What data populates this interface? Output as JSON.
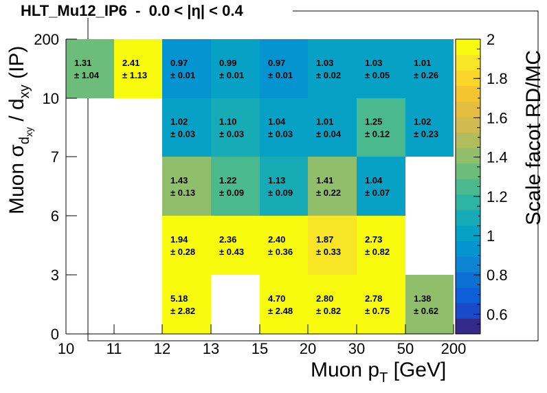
{
  "chart_data": {
    "type": "heatmap",
    "title": "HLT_Mu12_IP6  -  0.0 < |η| < 0.4",
    "xlabel": {
      "main": "Muon p",
      "sub": "T",
      "rest": " [GeV]"
    },
    "ylabel": {
      "a": "Muon σ",
      "b": "d",
      "c": "xy",
      "d": " / d",
      "e": "xy",
      "f": " (IP)"
    },
    "zlabel": "Scale facot RD/MC",
    "x_edges": [
      "10",
      "11",
      "12",
      "13",
      "15",
      "20",
      "30",
      "50",
      "200"
    ],
    "y_edges": [
      "0",
      "3",
      "6",
      "7",
      "10",
      "200"
    ],
    "z_range": [
      0.5,
      2.0
    ],
    "z_ticks": [
      "0.6",
      "0.8",
      "1",
      "1.2",
      "1.4",
      "1.6",
      "1.8",
      "2"
    ],
    "palette": [
      "#352a87",
      "#1a49c9",
      "#0d5fd8",
      "#0b72d4",
      "#0d84d2",
      "#0495d0",
      "#06a1c5",
      "#17abb5",
      "#2db4a2",
      "#4ab98e",
      "#6cbd7a",
      "#90be6a",
      "#b1bc5c",
      "#cfbb4f",
      "#e5bd3f",
      "#f5c52f",
      "#fad52a",
      "#f7e526",
      "#f9fb0e"
    ],
    "cells": [
      {
        "x": 0,
        "y": 4,
        "value": 1.31,
        "label": "1.31",
        "err": "± 1.04"
      },
      {
        "x": 1,
        "y": 4,
        "value": 2.41,
        "label": "2.41",
        "err": "± 1.13"
      },
      {
        "x": 2,
        "y": 4,
        "value": 0.97,
        "label": "0.97",
        "err": "± 0.01"
      },
      {
        "x": 3,
        "y": 4,
        "value": 0.99,
        "label": "0.99",
        "err": "± 0.01"
      },
      {
        "x": 4,
        "y": 4,
        "value": 0.97,
        "label": "0.97",
        "err": "± 0.01"
      },
      {
        "x": 5,
        "y": 4,
        "value": 1.03,
        "label": "1.03",
        "err": "± 0.02"
      },
      {
        "x": 6,
        "y": 4,
        "value": 1.03,
        "label": "1.03",
        "err": "± 0.05"
      },
      {
        "x": 7,
        "y": 4,
        "value": 1.01,
        "label": "1.01",
        "err": "± 0.26"
      },
      {
        "x": 2,
        "y": 3,
        "value": 1.02,
        "label": "1.02",
        "err": "± 0.03"
      },
      {
        "x": 3,
        "y": 3,
        "value": 1.1,
        "label": "1.10",
        "err": "± 0.03"
      },
      {
        "x": 4,
        "y": 3,
        "value": 1.04,
        "label": "1.04",
        "err": "± 0.03"
      },
      {
        "x": 5,
        "y": 3,
        "value": 1.01,
        "label": "1.01",
        "err": "± 0.04"
      },
      {
        "x": 6,
        "y": 3,
        "value": 1.25,
        "label": "1.25",
        "err": "± 0.12"
      },
      {
        "x": 7,
        "y": 3,
        "value": 1.02,
        "label": "1.02",
        "err": "± 0.23"
      },
      {
        "x": 2,
        "y": 2,
        "value": 1.43,
        "label": "1.43",
        "err": "± 0.13"
      },
      {
        "x": 3,
        "y": 2,
        "value": 1.22,
        "label": "1.22",
        "err": "± 0.09"
      },
      {
        "x": 4,
        "y": 2,
        "value": 1.13,
        "label": "1.13",
        "err": "± 0.09"
      },
      {
        "x": 5,
        "y": 2,
        "value": 1.41,
        "label": "1.41",
        "err": "± 0.22"
      },
      {
        "x": 6,
        "y": 2,
        "value": 1.04,
        "label": "1.04",
        "err": "± 0.07"
      },
      {
        "x": 2,
        "y": 1,
        "value": 1.94,
        "label": "1.94",
        "err": "± 0.28"
      },
      {
        "x": 3,
        "y": 1,
        "value": 2.36,
        "label": "2.36",
        "err": "± 0.43"
      },
      {
        "x": 4,
        "y": 1,
        "value": 2.4,
        "label": "2.40",
        "err": "± 0.36"
      },
      {
        "x": 5,
        "y": 1,
        "value": 1.87,
        "label": "1.87",
        "err": "± 0.33"
      },
      {
        "x": 6,
        "y": 1,
        "value": 2.73,
        "label": "2.73",
        "err": "± 0.82"
      },
      {
        "x": 2,
        "y": 0,
        "value": 5.18,
        "label": "5.18",
        "err": "± 2.82"
      },
      {
        "x": 4,
        "y": 0,
        "value": 4.7,
        "label": "4.70",
        "err": "± 2.48"
      },
      {
        "x": 5,
        "y": 0,
        "value": 2.8,
        "label": "2.80",
        "err": "± 0.82"
      },
      {
        "x": 6,
        "y": 0,
        "value": 2.78,
        "label": "2.78",
        "err": "± 0.75"
      },
      {
        "x": 7,
        "y": 0,
        "value": 1.38,
        "label": "1.38",
        "err": "± 0.62"
      }
    ]
  }
}
